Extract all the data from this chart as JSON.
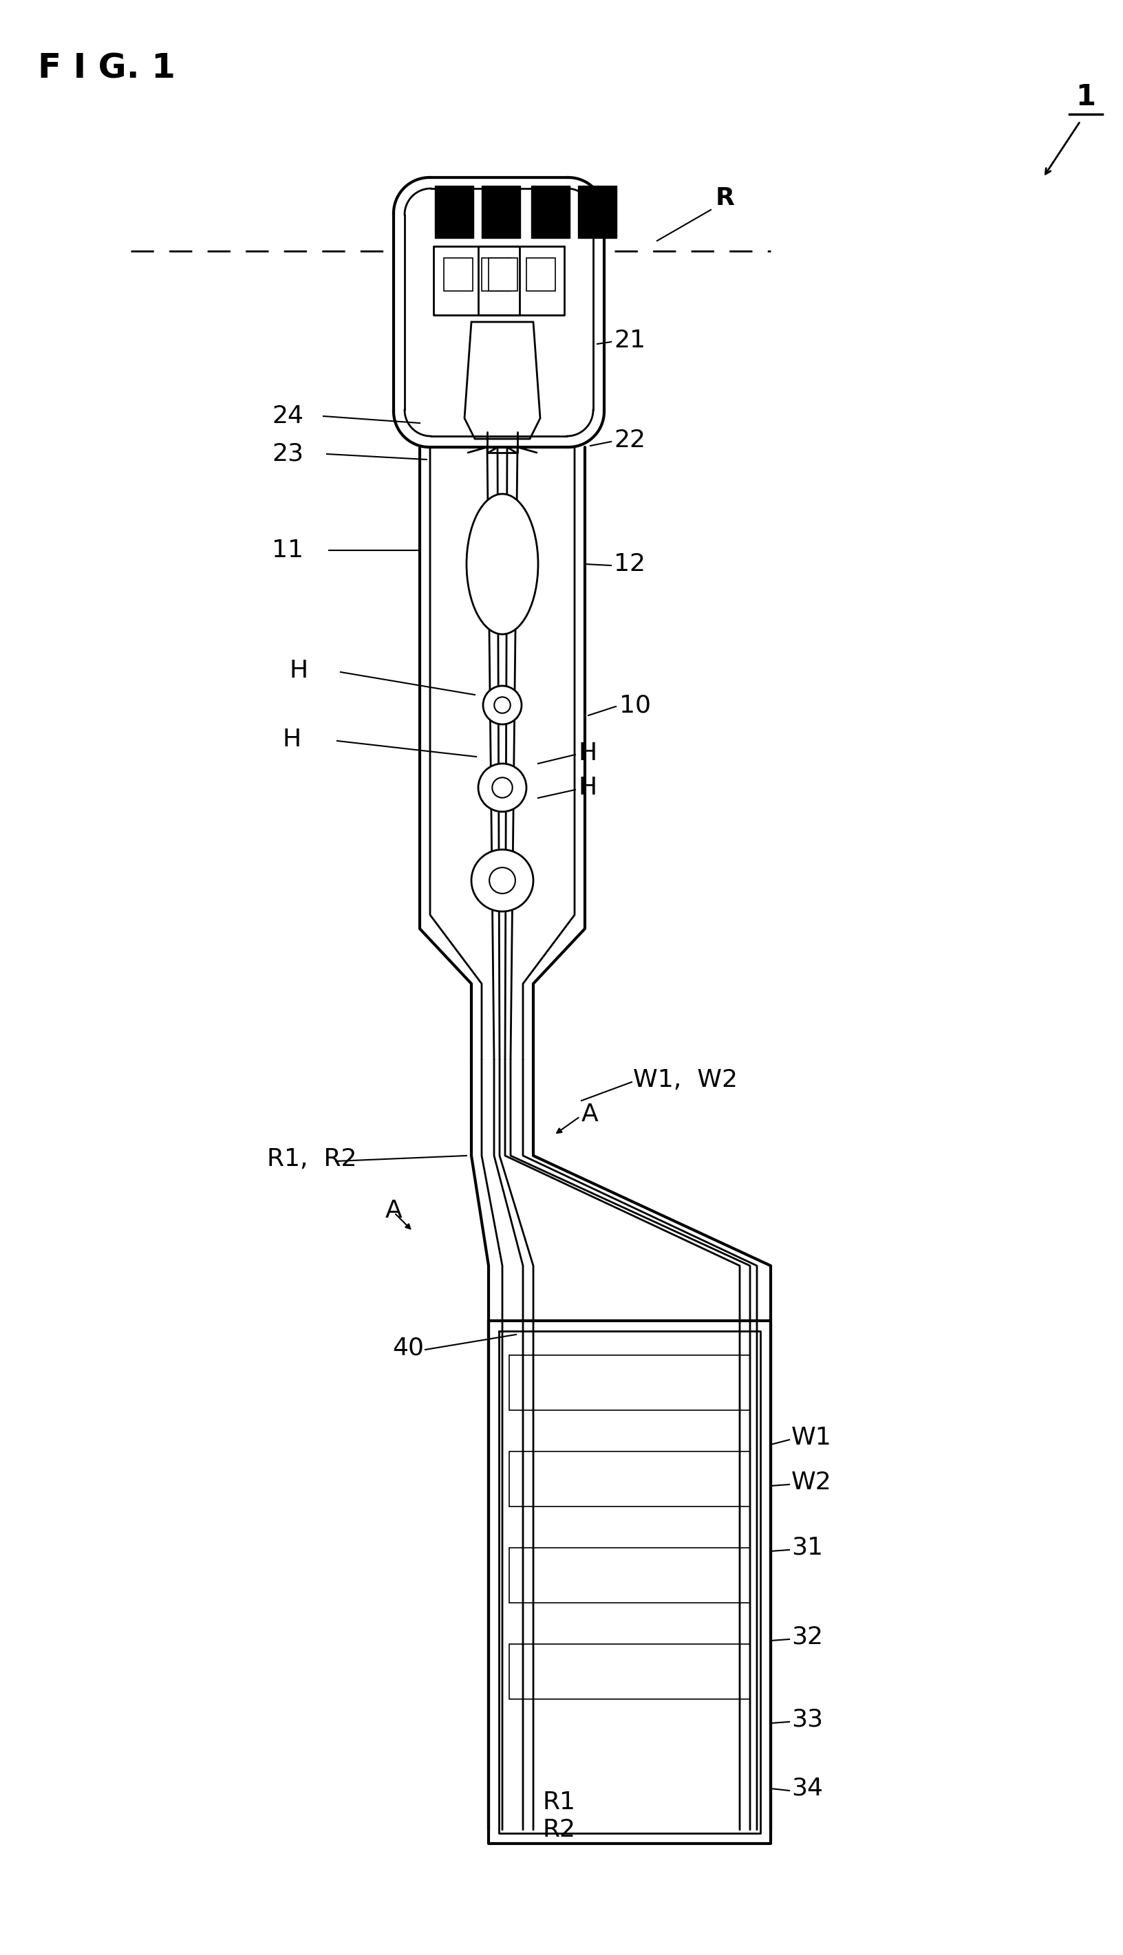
{
  "fig_label": "F I G. 1",
  "ref_number": "1",
  "label_R": "R",
  "label_21": "21",
  "label_24": "24",
  "label_23": "23",
  "label_22": "22",
  "label_11": "11",
  "label_12": "12",
  "label_H": "H",
  "label_10": "10",
  "label_W1W2": "W1,  W2",
  "label_A": "A",
  "label_R1R2": "R1,  R2",
  "label_40": "40",
  "label_W1": "W1",
  "label_W2": "W2",
  "label_31": "31",
  "label_32": "32",
  "label_33": "33",
  "label_34": "34",
  "label_R1": "R1",
  "label_R2": "R2",
  "bg_color": "#ffffff",
  "line_color": "#000000"
}
